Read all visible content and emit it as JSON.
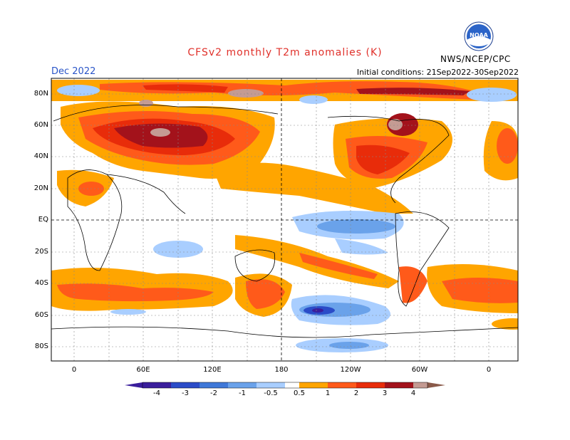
{
  "header": {
    "title": "CFSv2 monthly T2m anomalies (K)",
    "month": "Dec 2022",
    "initial_conditions": "Initial conditions: 21Sep2022-30Sep2022",
    "organization": "NWS/NCEP/CPC",
    "logo_text": "NOAA"
  },
  "map": {
    "lat_labels": [
      "80N",
      "60N",
      "40N",
      "20N",
      "EQ",
      "20S",
      "40S",
      "60S",
      "80S"
    ],
    "lon_labels": [
      "0",
      "60E",
      "120E",
      "180",
      "120W",
      "60W",
      "0"
    ]
  },
  "colorbar": {
    "labels": [
      "-4",
      "-3",
      "-2",
      "-1",
      "-0.5",
      "0.5",
      "1",
      "2",
      "3",
      "4"
    ],
    "colors": [
      "#3a1e9c",
      "#2b4cc8",
      "#3f78d8",
      "#6aa2ea",
      "#a9ceff",
      "#ffffff",
      "#ffa500",
      "#ff5a1a",
      "#e82c0a",
      "#a3121b",
      "#c49b93",
      "#8a5a4a"
    ]
  }
}
